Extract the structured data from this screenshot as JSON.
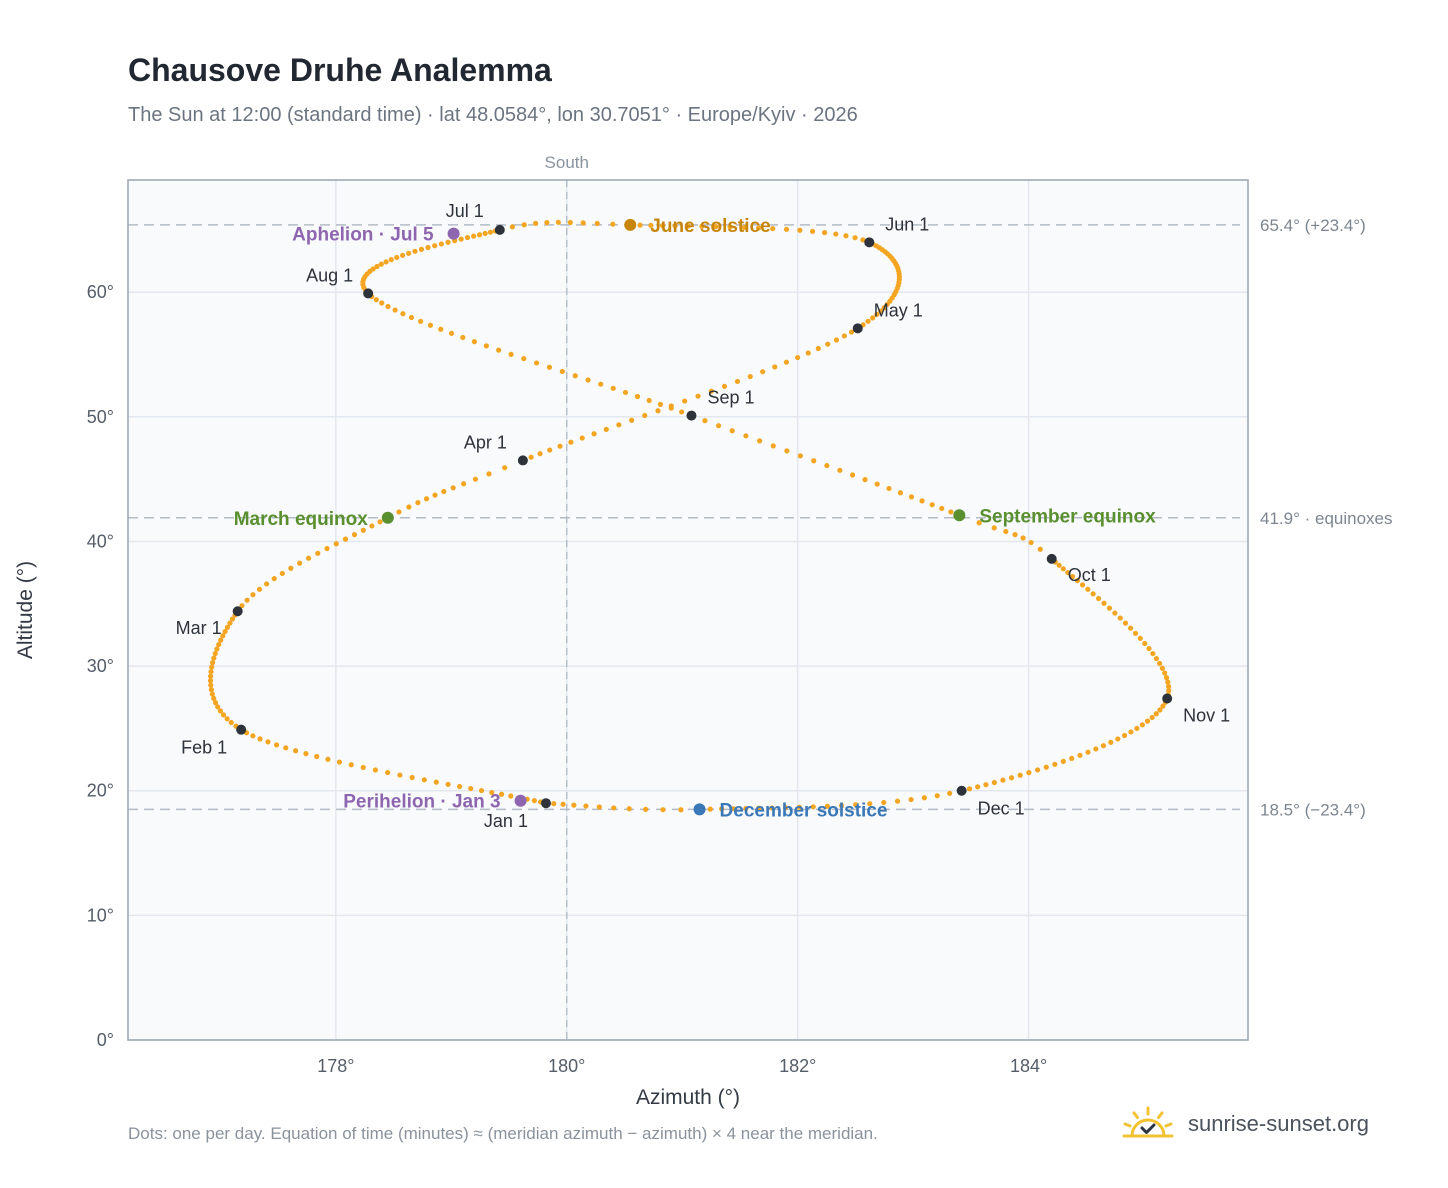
{
  "header": {
    "title": "Chausove Druhe Analemma",
    "subtitle": "The Sun at 12:00 (standard time) · lat 48.0584°, lon 30.7051° · Europe/Kyiv · 2026"
  },
  "chart_data": {
    "type": "scatter",
    "xlabel": "Azimuth (°)",
    "ylabel": "Altitude (°)",
    "xlim": [
      176.2,
      185.9
    ],
    "ylim": [
      0,
      69
    ],
    "x_ticks": [
      {
        "v": 178,
        "label": "178°"
      },
      {
        "v": 180,
        "label": "180°"
      },
      {
        "v": 182,
        "label": "182°"
      },
      {
        "v": 184,
        "label": "184°"
      }
    ],
    "y_ticks": [
      {
        "v": 0,
        "label": "0°"
      },
      {
        "v": 10,
        "label": "10°"
      },
      {
        "v": 20,
        "label": "20°"
      },
      {
        "v": 30,
        "label": "30°"
      },
      {
        "v": 40,
        "label": "40°"
      },
      {
        "v": 50,
        "label": "50°"
      },
      {
        "v": 60,
        "label": "60°"
      }
    ],
    "grid": true,
    "meridian": {
      "x": 180,
      "label": "South"
    },
    "reference_lines": [
      {
        "y": 65.4,
        "label": "65.4° (+23.4°)"
      },
      {
        "y": 41.9,
        "label": "41.9° · equinoxes"
      },
      {
        "y": 18.5,
        "label": "18.5° (−23.4°)"
      }
    ],
    "analemma_color": "#f4a623",
    "analemma_anchors": [
      {
        "day": 0,
        "az": 179.82,
        "alt": 19.0
      },
      {
        "day": 31,
        "az": 177.18,
        "alt": 24.9
      },
      {
        "day": 59,
        "az": 177.15,
        "alt": 34.4
      },
      {
        "day": 78,
        "az": 178.45,
        "alt": 41.9
      },
      {
        "day": 90,
        "az": 179.62,
        "alt": 46.5
      },
      {
        "day": 120,
        "az": 182.52,
        "alt": 57.1
      },
      {
        "day": 151,
        "az": 182.62,
        "alt": 64.0
      },
      {
        "day": 171,
        "az": 180.55,
        "alt": 65.4
      },
      {
        "day": 181,
        "az": 179.42,
        "alt": 65.0
      },
      {
        "day": 212,
        "az": 178.28,
        "alt": 59.9
      },
      {
        "day": 243,
        "az": 181.08,
        "alt": 50.1
      },
      {
        "day": 265,
        "az": 183.4,
        "alt": 42.1
      },
      {
        "day": 273,
        "az": 184.2,
        "alt": 38.6
      },
      {
        "day": 304,
        "az": 185.2,
        "alt": 27.4
      },
      {
        "day": 334,
        "az": 183.42,
        "alt": 20.0
      },
      {
        "day": 354,
        "az": 181.15,
        "alt": 18.5
      },
      {
        "day": 365,
        "az": 179.82,
        "alt": 19.0
      }
    ],
    "month_markers": [
      {
        "label": "Jan 1",
        "az": 179.82,
        "alt": 19.0,
        "anchor": "end",
        "dx": -18,
        "dy": 24
      },
      {
        "label": "Feb 1",
        "az": 177.18,
        "alt": 24.9,
        "anchor": "end",
        "dx": -14,
        "dy": 24
      },
      {
        "label": "Mar 1",
        "az": 177.15,
        "alt": 34.4,
        "anchor": "end",
        "dx": -16,
        "dy": 23
      },
      {
        "label": "Apr 1",
        "az": 179.62,
        "alt": 46.5,
        "anchor": "end",
        "dx": -16,
        "dy": -12
      },
      {
        "label": "May 1",
        "az": 182.52,
        "alt": 57.1,
        "anchor": "start",
        "dx": 16,
        "dy": -12
      },
      {
        "label": "Jun 1",
        "az": 182.62,
        "alt": 64.0,
        "anchor": "start",
        "dx": 16,
        "dy": -12
      },
      {
        "label": "Jul 1",
        "az": 179.42,
        "alt": 65.0,
        "anchor": "end",
        "dx": -16,
        "dy": -13
      },
      {
        "label": "Aug 1",
        "az": 178.28,
        "alt": 59.9,
        "anchor": "end",
        "dx": -15,
        "dy": -12
      },
      {
        "label": "Sep 1",
        "az": 181.08,
        "alt": 50.1,
        "anchor": "start",
        "dx": 16,
        "dy": -12
      },
      {
        "label": "Oct 1",
        "az": 184.2,
        "alt": 38.6,
        "anchor": "start",
        "dx": 16,
        "dy": 22
      },
      {
        "label": "Nov 1",
        "az": 185.2,
        "alt": 27.4,
        "anchor": "start",
        "dx": 16,
        "dy": 23
      },
      {
        "label": "Dec 1",
        "az": 183.42,
        "alt": 20.0,
        "anchor": "start",
        "dx": 16,
        "dy": 24
      }
    ],
    "events": [
      {
        "label": "March equinox",
        "az": 178.45,
        "alt": 41.9,
        "color": "#5a8f2f",
        "anchor": "end",
        "dx": -20
      },
      {
        "label": "June solstice",
        "az": 180.55,
        "alt": 65.4,
        "color": "#c7860a",
        "anchor": "start",
        "dx": 20
      },
      {
        "label": "September equinox",
        "az": 183.4,
        "alt": 42.1,
        "color": "#5a8f2f",
        "anchor": "start",
        "dx": 20
      },
      {
        "label": "December solstice",
        "az": 181.15,
        "alt": 18.5,
        "color": "#3a78b8",
        "anchor": "start",
        "dx": 20
      },
      {
        "label": "Aphelion · Jul 5",
        "az": 179.02,
        "alt": 64.7,
        "color": "#8e66b0",
        "anchor": "end",
        "dx": -20
      },
      {
        "label": "Perihelion · Jan 3",
        "az": 179.6,
        "alt": 19.2,
        "color": "#8e66b0",
        "anchor": "end",
        "dx": -20
      }
    ]
  },
  "footer": {
    "note": "Dots: one per day. Equation of time (minutes) ≈ (meridian azimuth − azimuth) × 4 near the meridian.",
    "brand": "sunrise-sunset.org",
    "brand_icon": "sun-horizon-check-icon"
  }
}
